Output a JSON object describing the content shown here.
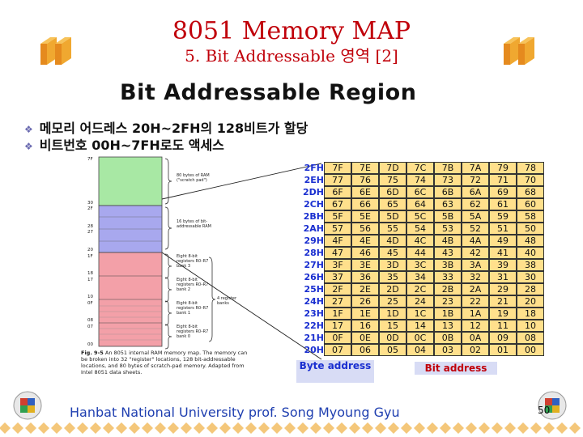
{
  "title": "8051 Memory MAP",
  "subtitle": "5. Bit Addressable 영역 [2]",
  "heading": "Bit Addressable Region",
  "bullets": [
    "메모리 어드레스 20H~2FH의 128비트가 할당",
    "비트번호 00H~7FH로도 액세스"
  ],
  "memory_map": {
    "top_addresses": [
      "7F",
      "30",
      "2F",
      "28",
      "27",
      "20",
      "1F",
      "18",
      "17",
      "10",
      "0F",
      "08",
      "07",
      "00"
    ],
    "region_labels": {
      "scratch": "80 bytes of RAM (\"scratch pad\")",
      "bitaddr": "16 bytes of bit-addressable RAM",
      "bank3": "Eight 8-bit registers R0–R7 bank 3",
      "bank2": "Eight 8-bit registers R0–R7 bank 2",
      "bank1": "Eight 8-bit registers R0–R7 bank 1",
      "bank0": "Eight 8-bit registers R0–R7 bank 0",
      "register_banks": "4 register banks"
    },
    "caption_fig": "Fig. 9-5",
    "caption_text": "An 8051 internal RAM memory map. The memory can be broken into 32 \"register\" locations, 128 bit-addressable locations, and 80 bytes of scratch-pad memory. Adapted from Intel 8051 data sheets."
  },
  "table": {
    "byte_addresses": [
      "2FH",
      "2EH",
      "2DH",
      "2CH",
      "2BH",
      "2AH",
      "29H",
      "28H",
      "27H",
      "26H",
      "25H",
      "24H",
      "23H",
      "22H",
      "21H",
      "20H"
    ],
    "rows": [
      [
        "7F",
        "7E",
        "7D",
        "7C",
        "7B",
        "7A",
        "79",
        "78"
      ],
      [
        "77",
        "76",
        "75",
        "74",
        "73",
        "72",
        "71",
        "70"
      ],
      [
        "6F",
        "6E",
        "6D",
        "6C",
        "6B",
        "6A",
        "69",
        "68"
      ],
      [
        "67",
        "66",
        "65",
        "64",
        "63",
        "62",
        "61",
        "60"
      ],
      [
        "5F",
        "5E",
        "5D",
        "5C",
        "5B",
        "5A",
        "59",
        "58"
      ],
      [
        "57",
        "56",
        "55",
        "54",
        "53",
        "52",
        "51",
        "50"
      ],
      [
        "4F",
        "4E",
        "4D",
        "4C",
        "4B",
        "4A",
        "49",
        "48"
      ],
      [
        "47",
        "46",
        "45",
        "44",
        "43",
        "42",
        "41",
        "40"
      ],
      [
        "3F",
        "3E",
        "3D",
        "3C",
        "3B",
        "3A",
        "39",
        "38"
      ],
      [
        "37",
        "36",
        "35",
        "34",
        "33",
        "32",
        "31",
        "30"
      ],
      [
        "2F",
        "2E",
        "2D",
        "2C",
        "2B",
        "2A",
        "29",
        "28"
      ],
      [
        "27",
        "26",
        "25",
        "24",
        "23",
        "22",
        "21",
        "20"
      ],
      [
        "1F",
        "1E",
        "1D",
        "1C",
        "1B",
        "1A",
        "19",
        "18"
      ],
      [
        "17",
        "16",
        "15",
        "14",
        "13",
        "12",
        "11",
        "10"
      ],
      [
        "0F",
        "0E",
        "0D",
        "0C",
        "0B",
        "0A",
        "09",
        "08"
      ],
      [
        "07",
        "06",
        "05",
        "04",
        "03",
        "02",
        "01",
        "00"
      ]
    ],
    "byte_address_label": "Byte address",
    "bit_address_label": "Bit address"
  },
  "footer": "Hanbat National University prof. Song Myoung Gyu",
  "page_number": "50",
  "colors": {
    "title": "#c0000a",
    "cell_fill": "#ffe08c",
    "byte_addr_text": "#1a2fd0",
    "legend_fill": "#d8dcf5",
    "bit_label_text": "#c0000a",
    "scratch": "#a8e8a4",
    "bitaddr": "#a8a8ee",
    "banks": "#f3a0a8"
  }
}
